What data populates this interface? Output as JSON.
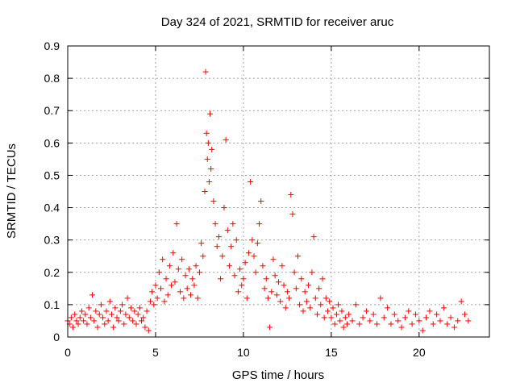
{
  "chart_data": {
    "type": "scatter",
    "title": "Day 324 of 2021, SRMTID for receiver aruc",
    "xlabel": "GPS time / hours",
    "ylabel": "SRMTID / TECUs",
    "xlim": [
      0,
      24
    ],
    "ylim": [
      0,
      0.9
    ],
    "x_ticks": [
      0,
      5,
      10,
      15,
      20
    ],
    "y_ticks": [
      0,
      0.1,
      0.2,
      0.3,
      0.4,
      0.5,
      0.6,
      0.7,
      0.8,
      0.9
    ],
    "x_tick_labels": [
      "0",
      "5",
      "10",
      "15",
      "20"
    ],
    "y_tick_labels": [
      "0",
      "0.1",
      "0.2",
      "0.3",
      "0.4",
      "0.5",
      "0.6",
      "0.7",
      "0.8",
      "0.9"
    ],
    "grid": true,
    "marker": "+",
    "color": "#ff0000",
    "series": [
      {
        "name": "SRMTID",
        "points": [
          [
            0.0,
            0.05
          ],
          [
            0.1,
            0.04
          ],
          [
            0.2,
            0.06
          ],
          [
            0.3,
            0.03
          ],
          [
            0.4,
            0.07
          ],
          [
            0.5,
            0.05
          ],
          [
            0.6,
            0.04
          ],
          [
            0.7,
            0.06
          ],
          [
            0.8,
            0.08
          ],
          [
            0.9,
            0.05
          ],
          [
            1.0,
            0.07
          ],
          [
            1.1,
            0.04
          ],
          [
            1.2,
            0.09
          ],
          [
            1.3,
            0.06
          ],
          [
            1.4,
            0.13
          ],
          [
            1.5,
            0.05
          ],
          [
            1.6,
            0.08
          ],
          [
            1.7,
            0.03
          ],
          [
            1.8,
            0.07
          ],
          [
            1.9,
            0.1
          ],
          [
            2.0,
            0.06
          ],
          [
            2.1,
            0.04
          ],
          [
            2.2,
            0.08
          ],
          [
            2.3,
            0.05
          ],
          [
            2.4,
            0.11
          ],
          [
            2.5,
            0.07
          ],
          [
            2.6,
            0.03
          ],
          [
            2.7,
            0.09
          ],
          [
            2.8,
            0.06
          ],
          [
            2.9,
            0.05
          ],
          [
            3.0,
            0.08
          ],
          [
            3.1,
            0.1
          ],
          [
            3.2,
            0.04
          ],
          [
            3.3,
            0.07
          ],
          [
            3.4,
            0.12
          ],
          [
            3.5,
            0.06
          ],
          [
            3.6,
            0.09
          ],
          [
            3.7,
            0.05
          ],
          [
            3.8,
            0.08
          ],
          [
            3.9,
            0.04
          ],
          [
            4.0,
            0.07
          ],
          [
            4.1,
            0.09
          ],
          [
            4.2,
            0.05
          ],
          [
            4.3,
            0.06
          ],
          [
            4.4,
            0.03
          ],
          [
            4.5,
            0.08
          ],
          [
            4.6,
            0.02
          ],
          [
            4.7,
            0.11
          ],
          [
            4.8,
            0.14
          ],
          [
            4.9,
            0.1
          ],
          [
            5.0,
            0.16
          ],
          [
            5.1,
            0.12
          ],
          [
            5.2,
            0.2
          ],
          [
            5.3,
            0.15
          ],
          [
            5.4,
            0.24
          ],
          [
            5.5,
            0.11
          ],
          [
            5.6,
            0.18
          ],
          [
            5.7,
            0.13
          ],
          [
            5.8,
            0.22
          ],
          [
            5.9,
            0.16
          ],
          [
            6.0,
            0.26
          ],
          [
            6.1,
            0.17
          ],
          [
            6.2,
            0.35
          ],
          [
            6.3,
            0.21
          ],
          [
            6.4,
            0.14
          ],
          [
            6.5,
            0.24
          ],
          [
            6.6,
            0.12
          ],
          [
            6.7,
            0.19
          ],
          [
            6.8,
            0.15
          ],
          [
            6.9,
            0.21
          ],
          [
            7.0,
            0.13
          ],
          [
            7.1,
            0.18
          ],
          [
            7.2,
            0.16
          ],
          [
            7.3,
            0.22
          ],
          [
            7.4,
            0.12
          ],
          [
            7.5,
            0.2
          ],
          [
            7.6,
            0.29
          ],
          [
            7.7,
            0.25
          ],
          [
            7.8,
            0.45
          ],
          [
            7.85,
            0.82
          ],
          [
            7.9,
            0.63
          ],
          [
            7.95,
            0.55
          ],
          [
            8.0,
            0.6
          ],
          [
            8.05,
            0.48
          ],
          [
            8.1,
            0.69
          ],
          [
            8.15,
            0.52
          ],
          [
            8.2,
            0.58
          ],
          [
            8.3,
            0.42
          ],
          [
            8.4,
            0.35
          ],
          [
            8.5,
            0.28
          ],
          [
            8.6,
            0.31
          ],
          [
            8.7,
            0.18
          ],
          [
            8.8,
            0.25
          ],
          [
            8.9,
            0.4
          ],
          [
            9.0,
            0.61
          ],
          [
            9.1,
            0.33
          ],
          [
            9.2,
            0.22
          ],
          [
            9.3,
            0.28
          ],
          [
            9.4,
            0.35
          ],
          [
            9.5,
            0.19
          ],
          [
            9.6,
            0.3
          ],
          [
            9.7,
            0.14
          ],
          [
            9.8,
            0.21
          ],
          [
            9.9,
            0.16
          ],
          [
            10.0,
            0.18
          ],
          [
            10.1,
            0.23
          ],
          [
            10.2,
            0.12
          ],
          [
            10.3,
            0.26
          ],
          [
            10.4,
            0.48
          ],
          [
            10.5,
            0.3
          ],
          [
            10.6,
            0.25
          ],
          [
            10.7,
            0.2
          ],
          [
            10.8,
            0.29
          ],
          [
            10.9,
            0.35
          ],
          [
            11.0,
            0.42
          ],
          [
            11.1,
            0.22
          ],
          [
            11.2,
            0.15
          ],
          [
            11.3,
            0.18
          ],
          [
            11.4,
            0.12
          ],
          [
            11.5,
            0.03
          ],
          [
            11.6,
            0.14
          ],
          [
            11.7,
            0.24
          ],
          [
            11.8,
            0.19
          ],
          [
            11.9,
            0.13
          ],
          [
            12.0,
            0.17
          ],
          [
            12.1,
            0.11
          ],
          [
            12.2,
            0.22
          ],
          [
            12.3,
            0.16
          ],
          [
            12.4,
            0.09
          ],
          [
            12.5,
            0.14
          ],
          [
            12.6,
            0.12
          ],
          [
            12.7,
            0.44
          ],
          [
            12.8,
            0.38
          ],
          [
            12.9,
            0.2
          ],
          [
            13.0,
            0.15
          ],
          [
            13.1,
            0.25
          ],
          [
            13.2,
            0.1
          ],
          [
            13.3,
            0.18
          ],
          [
            13.4,
            0.08
          ],
          [
            13.5,
            0.14
          ],
          [
            13.6,
            0.11
          ],
          [
            13.7,
            0.16
          ],
          [
            13.8,
            0.09
          ],
          [
            13.9,
            0.2
          ],
          [
            14.0,
            0.31
          ],
          [
            14.1,
            0.12
          ],
          [
            14.2,
            0.07
          ],
          [
            14.3,
            0.15
          ],
          [
            14.4,
            0.1
          ],
          [
            14.5,
            0.18
          ],
          [
            14.6,
            0.06
          ],
          [
            14.7,
            0.12
          ],
          [
            14.8,
            0.08
          ],
          [
            14.9,
            0.11
          ],
          [
            15.0,
            0.06
          ],
          [
            15.1,
            0.09
          ],
          [
            15.2,
            0.04
          ],
          [
            15.3,
            0.07
          ],
          [
            15.4,
            0.1
          ],
          [
            15.5,
            0.05
          ],
          [
            15.6,
            0.08
          ],
          [
            15.7,
            0.03
          ],
          [
            15.8,
            0.06
          ],
          [
            15.9,
            0.04
          ],
          [
            16.0,
            0.07
          ],
          [
            16.2,
            0.05
          ],
          [
            16.4,
            0.1
          ],
          [
            16.6,
            0.04
          ],
          [
            16.8,
            0.06
          ],
          [
            17.0,
            0.08
          ],
          [
            17.2,
            0.05
          ],
          [
            17.4,
            0.07
          ],
          [
            17.6,
            0.04
          ],
          [
            17.8,
            0.12
          ],
          [
            18.0,
            0.06
          ],
          [
            18.2,
            0.09
          ],
          [
            18.4,
            0.04
          ],
          [
            18.6,
            0.07
          ],
          [
            18.8,
            0.05
          ],
          [
            19.0,
            0.03
          ],
          [
            19.2,
            0.06
          ],
          [
            19.4,
            0.08
          ],
          [
            19.6,
            0.04
          ],
          [
            19.8,
            0.07
          ],
          [
            20.0,
            0.05
          ],
          [
            20.2,
            0.02
          ],
          [
            20.4,
            0.06
          ],
          [
            20.6,
            0.08
          ],
          [
            20.8,
            0.04
          ],
          [
            21.0,
            0.07
          ],
          [
            21.2,
            0.05
          ],
          [
            21.4,
            0.09
          ],
          [
            21.6,
            0.04
          ],
          [
            21.8,
            0.06
          ],
          [
            22.0,
            0.03
          ],
          [
            22.2,
            0.05
          ],
          [
            22.4,
            0.11
          ],
          [
            22.6,
            0.07
          ],
          [
            22.8,
            0.05
          ]
        ]
      }
    ]
  }
}
